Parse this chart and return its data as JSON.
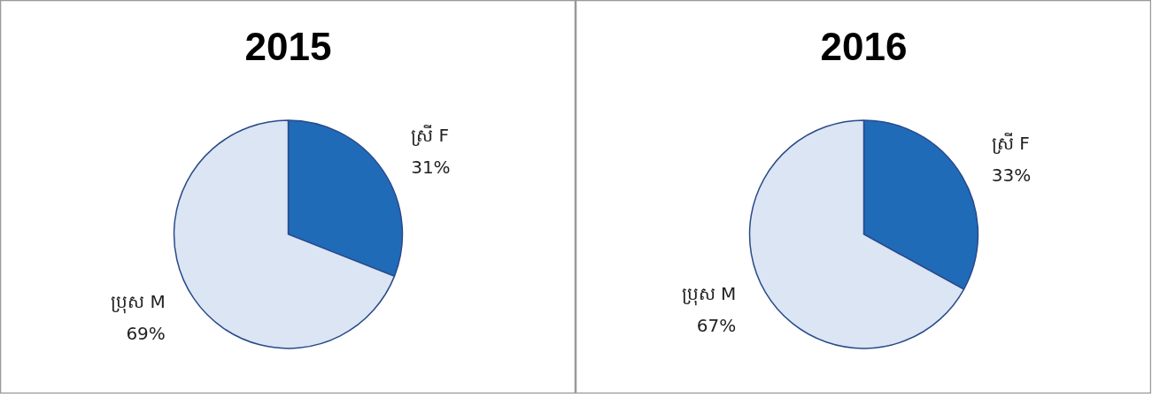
{
  "chart_data": [
    {
      "type": "pie",
      "title": "2015",
      "categories": [
        "ស្រី F",
        "ប្រុស M"
      ],
      "values": [
        31,
        69
      ],
      "colors": [
        "#1f6bb8",
        "#dbe5f3"
      ],
      "value_labels": [
        "31%",
        "69%"
      ]
    },
    {
      "type": "pie",
      "title": "2016",
      "categories": [
        "ស្រី F",
        "ប្រុស M"
      ],
      "values": [
        33,
        67
      ],
      "colors": [
        "#1f6bb8",
        "#dbe5f3"
      ],
      "value_labels": [
        "33%",
        "67%"
      ]
    }
  ]
}
